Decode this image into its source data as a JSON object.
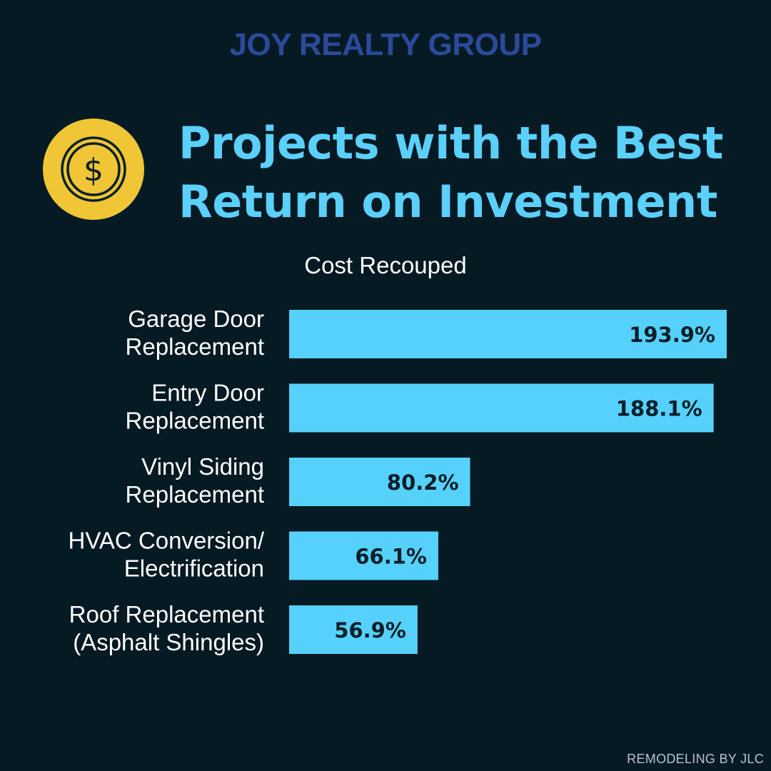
{
  "brand": "JOY REALTY GROUP",
  "title_lines": [
    "Projects with the Best",
    "Return on Investment"
  ],
  "icon": "dollar-coin-icon",
  "colors": {
    "background": "#061a24",
    "brand": "#2b4a9b",
    "title": "#5ad0fa",
    "bar": "#55d1fb",
    "bar_label": "#0a1e28",
    "coin_fill": "#f0c636",
    "coin_stroke": "#0a1e28"
  },
  "source": "REMODELING BY JLC",
  "chart_data": {
    "type": "bar",
    "orientation": "horizontal",
    "title": "Cost Recouped",
    "categories": [
      [
        "Garage Door",
        "Replacement"
      ],
      [
        "Entry Door",
        "Replacement"
      ],
      [
        "Vinyl Siding",
        "Replacement"
      ],
      [
        "HVAC Conversion/",
        "Electrification"
      ],
      [
        "Roof Replacement",
        "(Asphalt Shingles)"
      ]
    ],
    "values": [
      193.9,
      188.1,
      80.2,
      66.1,
      56.9
    ],
    "value_labels": [
      "193.9%",
      "188.1%",
      "80.2%",
      "66.1%",
      "56.9%"
    ],
    "unit": "%",
    "xlim": [
      0,
      193.9
    ],
    "grid": false,
    "legend": "none"
  }
}
